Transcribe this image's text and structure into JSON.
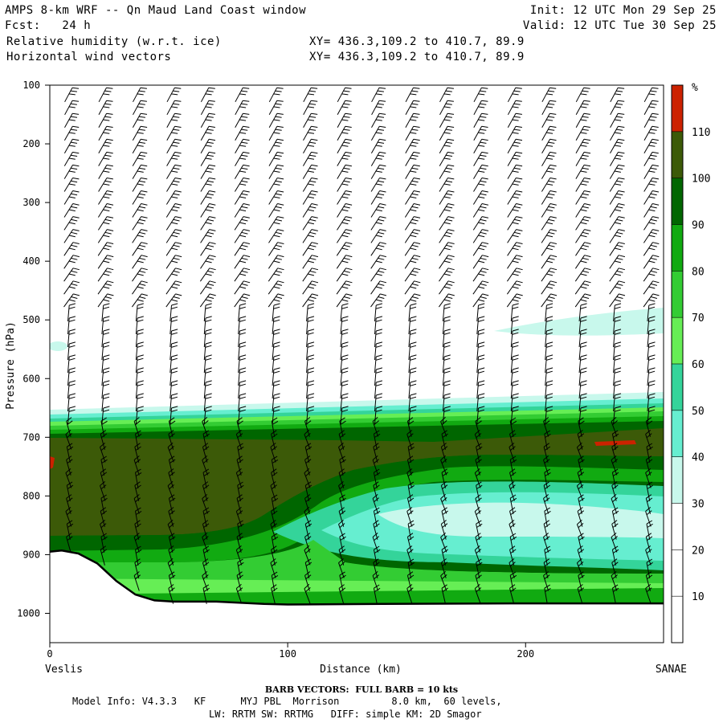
{
  "header": {
    "title": "AMPS 8-km WRF -- Qn Maud Land Coast window",
    "forecast": "Fcst:   24 h",
    "field1": "Relative humidity (w.r.t. ice)",
    "field2": "Horizontal wind vectors",
    "init": "Init: 12 UTC Mon 29 Sep 25",
    "valid": "Valid: 12 UTC Tue 30 Sep 25",
    "xy1": "XY= 436.3,109.2 to 410.7, 89.9",
    "xy2": "XY= 436.3,109.2 to 410.7, 89.9"
  },
  "chart_data": {
    "type": "cross-section",
    "ylabel": "Pressure (hPa)",
    "xlabel": "Distance (km)",
    "x_start_label": "Veslis",
    "x_end_label": "SANAE",
    "x_ticks": [
      0,
      100,
      200
    ],
    "xlim": [
      0,
      258
    ],
    "y_ticks": [
      100,
      200,
      300,
      400,
      500,
      600,
      700,
      800,
      900,
      1000
    ],
    "ylim": [
      100,
      1050
    ],
    "colorbar": {
      "unit": "%",
      "levels": [
        10,
        20,
        30,
        40,
        50,
        60,
        70,
        80,
        90,
        100,
        110
      ],
      "colors": [
        "#ffffff",
        "#ffffff",
        "#ffffff",
        "#c8f8ec",
        "#66eed0",
        "#34d49a",
        "#66ee55",
        "#33cc33",
        "#11aa11",
        "#006600",
        "#3c5a08",
        "#cc2200"
      ]
    },
    "terrain_surface_hPa": [
      {
        "x": 0,
        "p": 895
      },
      {
        "x": 5,
        "p": 893
      },
      {
        "x": 12,
        "p": 898
      },
      {
        "x": 20,
        "p": 915
      },
      {
        "x": 28,
        "p": 945
      },
      {
        "x": 36,
        "p": 968
      },
      {
        "x": 44,
        "p": 978
      },
      {
        "x": 52,
        "p": 980
      },
      {
        "x": 70,
        "p": 980
      },
      {
        "x": 90,
        "p": 984
      },
      {
        "x": 100,
        "p": 985
      },
      {
        "x": 140,
        "p": 984
      },
      {
        "x": 200,
        "p": 983
      },
      {
        "x": 258,
        "p": 983
      }
    ]
  },
  "footer": {
    "barb": "BARB VECTORS:  FULL BARB = 10 kts",
    "model1": "Model Info: V4.3.3   KF      MYJ PBL  Morrison         8.0 km,  60 levels,",
    "model2": "LW: RRTM SW: RRTMG   DIFF: simple KM: 2D Smagor"
  }
}
